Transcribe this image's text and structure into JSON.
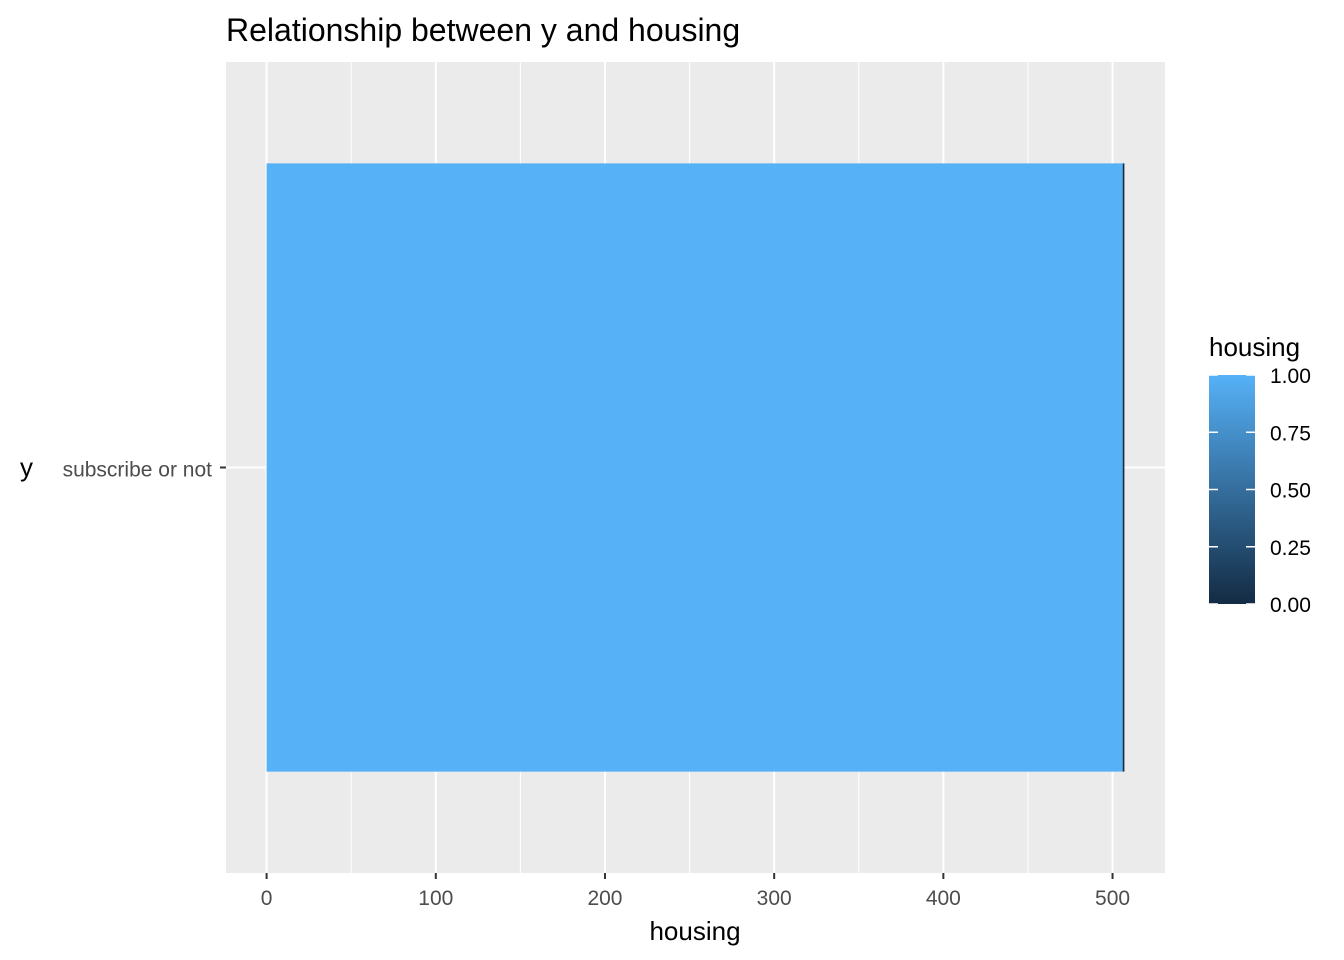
{
  "chart_data": {
    "type": "bar",
    "orientation": "horizontal",
    "title": "Relationship between y and housing",
    "xlabel": "housing",
    "ylabel": "y",
    "categories": [
      "subscribe or not"
    ],
    "xlim": [
      -24,
      531
    ],
    "x_ticks": [
      0,
      100,
      200,
      300,
      400,
      500
    ],
    "x_tick_labels": [
      "0",
      "100",
      "200",
      "300",
      "400",
      "500"
    ],
    "series": [
      {
        "category": "subscribe or not",
        "segments": [
          {
            "housing": 1,
            "value": 506,
            "color": "#56b1f7"
          },
          {
            "housing": 0,
            "value": 1,
            "color": "#132b43"
          }
        ]
      }
    ],
    "legend": {
      "title": "housing",
      "position": "right",
      "type": "colorbar",
      "ticks": [
        0,
        0.25,
        0.5,
        0.75,
        1
      ],
      "tick_labels": [
        "0.00",
        "0.25",
        "0.50",
        "0.75",
        "1.00"
      ],
      "low_color": "#132b43",
      "high_color": "#56b1f7"
    },
    "grid": true,
    "panel_background": "#ebebeb",
    "grid_color": "#ffffff"
  }
}
